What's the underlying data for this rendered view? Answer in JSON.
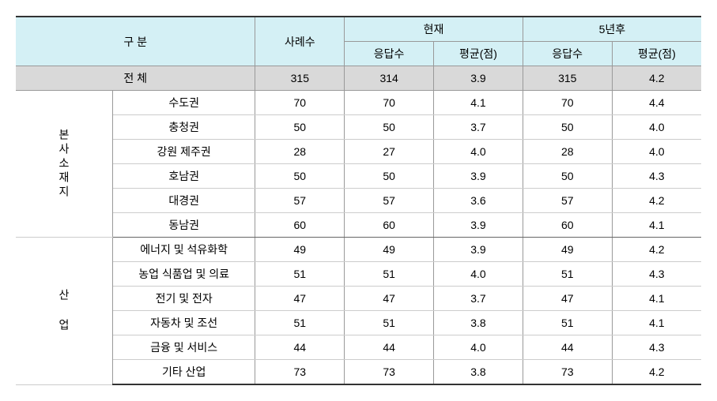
{
  "table": {
    "headers": {
      "category": "구 분",
      "cases": "사례수",
      "current": "현재",
      "future": "5년후",
      "responses": "응답수",
      "average": "평균(점)"
    },
    "total": {
      "label": "전 체",
      "cases": "315",
      "current_resp": "314",
      "current_avg": "3.9",
      "future_resp": "315",
      "future_avg": "4.2"
    },
    "groups": [
      {
        "label": "본사소재지",
        "rows": [
          {
            "name": "수도권",
            "cases": "70",
            "cr": "70",
            "ca": "4.1",
            "fr": "70",
            "fa": "4.4"
          },
          {
            "name": "충청권",
            "cases": "50",
            "cr": "50",
            "ca": "3.7",
            "fr": "50",
            "fa": "4.0"
          },
          {
            "name": "강원 제주권",
            "cases": "28",
            "cr": "27",
            "ca": "4.0",
            "fr": "28",
            "fa": "4.0"
          },
          {
            "name": "호남권",
            "cases": "50",
            "cr": "50",
            "ca": "3.9",
            "fr": "50",
            "fa": "4.3"
          },
          {
            "name": "대경권",
            "cases": "57",
            "cr": "57",
            "ca": "3.6",
            "fr": "57",
            "fa": "4.2"
          },
          {
            "name": "동남권",
            "cases": "60",
            "cr": "60",
            "ca": "3.9",
            "fr": "60",
            "fa": "4.1"
          }
        ]
      },
      {
        "label": "산 업",
        "rows": [
          {
            "name": "에너지 및 석유화학",
            "cases": "49",
            "cr": "49",
            "ca": "3.9",
            "fr": "49",
            "fa": "4.2"
          },
          {
            "name": "농업 식품업 및 의료",
            "cases": "51",
            "cr": "51",
            "ca": "4.0",
            "fr": "51",
            "fa": "4.3"
          },
          {
            "name": "전기 및 전자",
            "cases": "47",
            "cr": "47",
            "ca": "3.7",
            "fr": "47",
            "fa": "4.1"
          },
          {
            "name": "자동차 및 조선",
            "cases": "51",
            "cr": "51",
            "ca": "3.8",
            "fr": "51",
            "fa": "4.1"
          },
          {
            "name": "금융 및 서비스",
            "cases": "44",
            "cr": "44",
            "ca": "4.0",
            "fr": "44",
            "fa": "4.3"
          },
          {
            "name": "기타 산업",
            "cases": "73",
            "cr": "73",
            "ca": "3.8",
            "fr": "73",
            "fa": "4.2"
          }
        ]
      }
    ]
  },
  "styling": {
    "header_bg": "#d4f0f5",
    "total_bg": "#d9d9d9",
    "border_color": "#999",
    "font_size": 14
  }
}
